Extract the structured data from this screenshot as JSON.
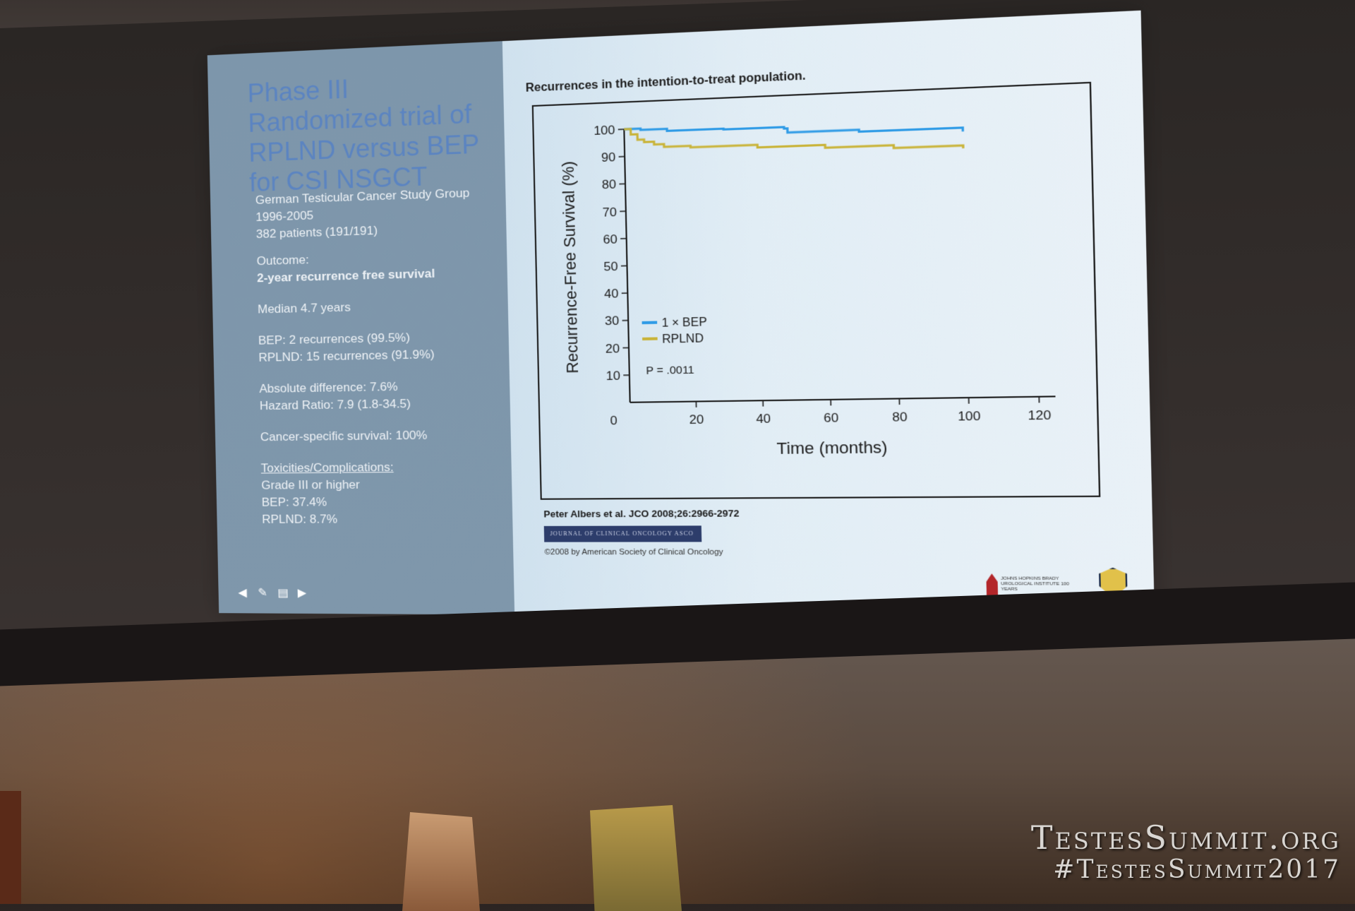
{
  "slide": {
    "title": "Phase III Randomized trial of RPLND versus BEP for CSI NSGCT",
    "study_group": "German Testicular Cancer Study Group",
    "years": "1996-2005",
    "patients": "382 patients (191/191)",
    "outcome_label": "Outcome:",
    "outcome_value": "2-year recurrence free survival",
    "median": "Median 4.7 years",
    "bep_recurrences": "BEP: 2 recurrences (99.5%)",
    "rplnd_recurrences": "RPLND: 15 recurrences (91.9%)",
    "absolute_difference": "Absolute difference: 7.6%",
    "hazard_ratio": "Hazard Ratio: 7.9 (1.8-34.5)",
    "cancer_specific": "Cancer-specific survival: 100%",
    "toxicities_heading": "Toxicities/Complications:",
    "grade": "Grade III or higher",
    "bep_tox": "BEP: 37.4%",
    "rplnd_tox": "RPLND: 8.7%",
    "nav_icons": [
      "arrow-left-icon",
      "pen-icon",
      "menu-icon",
      "arrow-right-icon"
    ],
    "citation": "Peter Albers et al. JCO 2008;26:2966-2972",
    "journal_banner": "JOURNAL OF CLINICAL ONCOLOGY ASCO",
    "copyright": "©2008 by American Society of Clinical Oncology",
    "logo_text": "JOHNS HOPKINS BRADY UROLOGICAL INSTITUTE 100 YEARS"
  },
  "watermark": {
    "site": "TestesSummit.org",
    "hashtag": "#TestesSummit2017"
  },
  "chart_data": {
    "type": "line",
    "title": "Recurrences in the intention-to-treat population.",
    "xlabel": "Time (months)",
    "ylabel": "Recurrence-Free Survival (%)",
    "xlim": [
      0,
      120
    ],
    "ylim": [
      0,
      100
    ],
    "x_ticks": [
      0,
      20,
      40,
      60,
      80,
      100,
      120
    ],
    "y_ticks": [
      10,
      20,
      30,
      40,
      50,
      60,
      70,
      80,
      90,
      100
    ],
    "annotation": "P = .0011",
    "legend_position": "bottom-left",
    "series": [
      {
        "name": "1 × BEP",
        "color": "#2f9be6",
        "points": [
          [
            0,
            100
          ],
          [
            5,
            99.5
          ],
          [
            12,
            99.5
          ],
          [
            13,
            98.8
          ],
          [
            30,
            98.5
          ],
          [
            48,
            98.0
          ],
          [
            49,
            96.5
          ],
          [
            70,
            95.8
          ],
          [
            100,
            94.5
          ]
        ]
      },
      {
        "name": "RPLND",
        "color": "#c9b43a",
        "points": [
          [
            0,
            100
          ],
          [
            2,
            98
          ],
          [
            4,
            96
          ],
          [
            6,
            95
          ],
          [
            9,
            94
          ],
          [
            12,
            93
          ],
          [
            20,
            92.5
          ],
          [
            40,
            91.5
          ],
          [
            60,
            90.5
          ],
          [
            80,
            89.5
          ],
          [
            100,
            88.5
          ]
        ]
      }
    ]
  }
}
